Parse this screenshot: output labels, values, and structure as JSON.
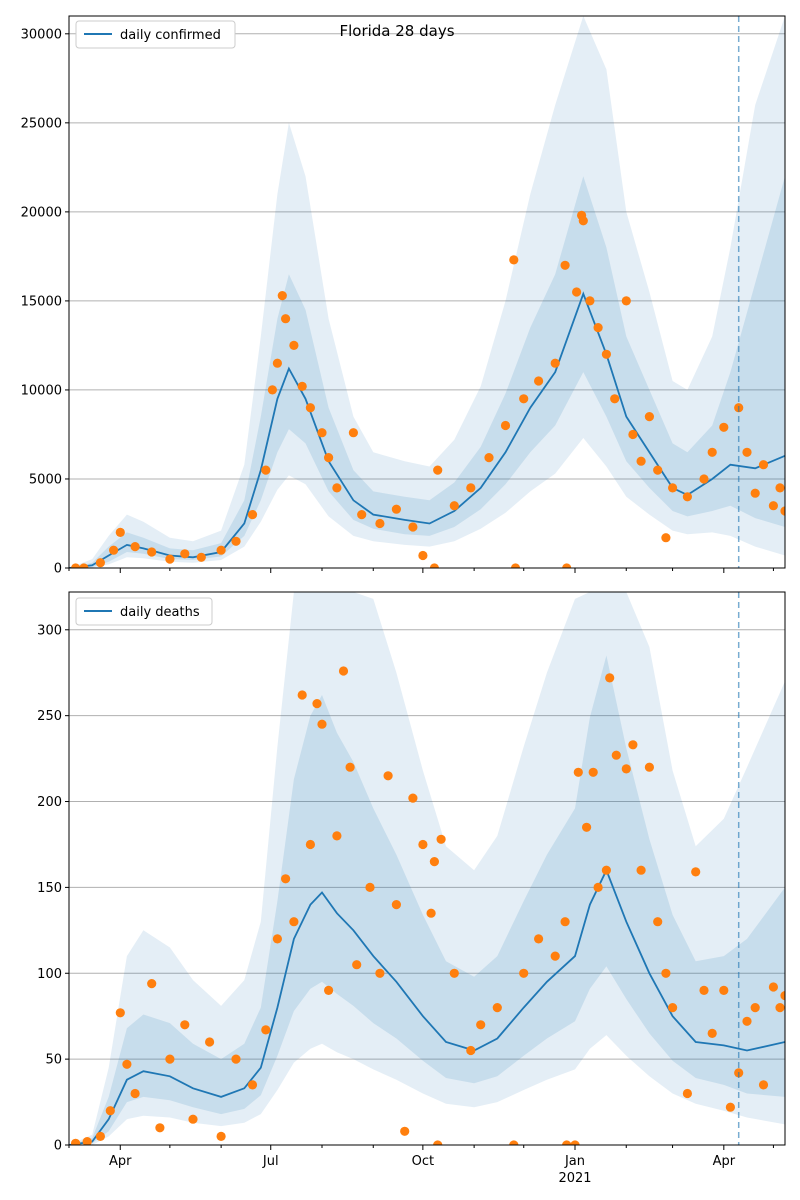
{
  "chart_data": [
    {
      "type": "line",
      "title": "Florida 28 days",
      "legend": {
        "label": "daily confirmed",
        "placement": "top-left"
      },
      "date_range": [
        "2020-03-01",
        "2021-05-08"
      ],
      "vline_date": "2021-04-10",
      "ylim": [
        0,
        31000
      ],
      "yticks": [
        0,
        5000,
        10000,
        15000,
        20000,
        25000,
        30000
      ],
      "grid_y": true,
      "colors": {
        "line": "#1f77b4",
        "points": "#ff7f0e",
        "vline": "#1f77b4"
      },
      "line_points": [
        [
          "2020-03-01",
          0
        ],
        [
          "2020-03-15",
          150
        ],
        [
          "2020-03-25",
          700
        ],
        [
          "2020-04-05",
          1300
        ],
        [
          "2020-04-15",
          1100
        ],
        [
          "2020-05-01",
          700
        ],
        [
          "2020-05-15",
          600
        ],
        [
          "2020-06-01",
          900
        ],
        [
          "2020-06-15",
          2500
        ],
        [
          "2020-06-25",
          5500
        ],
        [
          "2020-07-05",
          9500
        ],
        [
          "2020-07-12",
          11200
        ],
        [
          "2020-07-22",
          9500
        ],
        [
          "2020-08-05",
          6000
        ],
        [
          "2020-08-20",
          3800
        ],
        [
          "2020-09-01",
          3000
        ],
        [
          "2020-09-20",
          2700
        ],
        [
          "2020-10-05",
          2500
        ],
        [
          "2020-10-20",
          3200
        ],
        [
          "2020-11-05",
          4500
        ],
        [
          "2020-11-20",
          6500
        ],
        [
          "2020-12-05",
          9000
        ],
        [
          "2020-12-20",
          11000
        ],
        [
          "2021-01-06",
          15400
        ],
        [
          "2021-01-20",
          12000
        ],
        [
          "2021-02-01",
          8500
        ],
        [
          "2021-02-15",
          6500
        ],
        [
          "2021-03-01",
          4500
        ],
        [
          "2021-03-10",
          4100
        ],
        [
          "2021-03-25",
          5000
        ],
        [
          "2021-04-05",
          5800
        ],
        [
          "2021-04-20",
          5600
        ],
        [
          "2021-05-08",
          6300
        ]
      ],
      "band_inner": {
        "lower": [
          0,
          50,
          350,
          900,
          800,
          500,
          450,
          650,
          1800,
          3800,
          6500,
          7800,
          7000,
          4300,
          2700,
          2200,
          1900,
          1800,
          2300,
          3300,
          4700,
          6500,
          8000,
          11000,
          8500,
          6000,
          4500,
          3200,
          2900,
          3200,
          3500,
          2800,
          2300
        ],
        "upper": [
          0,
          300,
          1200,
          2000,
          1700,
          1100,
          1000,
          1400,
          3800,
          8500,
          14000,
          16500,
          14500,
          9000,
          5500,
          4300,
          4000,
          3800,
          4800,
          6800,
          9800,
          13500,
          16500,
          22000,
          18000,
          13000,
          10000,
          7000,
          6500,
          8000,
          11000,
          16000,
          22000
        ]
      },
      "band_outer": {
        "lower": [
          0,
          20,
          200,
          600,
          550,
          350,
          300,
          450,
          1200,
          2600,
          4400,
          5200,
          4700,
          2900,
          1800,
          1500,
          1300,
          1200,
          1500,
          2200,
          3100,
          4300,
          5300,
          7300,
          5700,
          4000,
          3000,
          2100,
          1900,
          2000,
          1800,
          1200,
          700
        ],
        "upper": [
          0,
          500,
          1800,
          3000,
          2600,
          1700,
          1500,
          2100,
          5800,
          13000,
          21000,
          25000,
          22000,
          14000,
          8500,
          6500,
          6000,
          5700,
          7200,
          10200,
          15000,
          21000,
          26000,
          33000,
          28000,
          20000,
          15500,
          10500,
          10000,
          13000,
          18000,
          26000,
          33000
        ]
      },
      "scatter_points": [
        [
          "2020-03-05",
          0
        ],
        [
          "2020-03-10",
          0
        ],
        [
          "2020-03-20",
          300
        ],
        [
          "2020-03-28",
          1000
        ],
        [
          "2020-04-01",
          2000
        ],
        [
          "2020-04-10",
          1200
        ],
        [
          "2020-04-20",
          900
        ],
        [
          "2020-05-01",
          500
        ],
        [
          "2020-05-10",
          800
        ],
        [
          "2020-05-20",
          600
        ],
        [
          "2020-06-01",
          1000
        ],
        [
          "2020-06-10",
          1500
        ],
        [
          "2020-06-20",
          3000
        ],
        [
          "2020-06-28",
          5500
        ],
        [
          "2020-07-02",
          10000
        ],
        [
          "2020-07-05",
          11500
        ],
        [
          "2020-07-08",
          15300
        ],
        [
          "2020-07-10",
          14000
        ],
        [
          "2020-07-15",
          12500
        ],
        [
          "2020-07-20",
          10200
        ],
        [
          "2020-07-25",
          9000
        ],
        [
          "2020-08-01",
          7600
        ],
        [
          "2020-08-05",
          6200
        ],
        [
          "2020-08-10",
          4500
        ],
        [
          "2020-08-20",
          7600
        ],
        [
          "2020-08-25",
          3000
        ],
        [
          "2020-09-05",
          2500
        ],
        [
          "2020-09-15",
          3300
        ],
        [
          "2020-09-25",
          2300
        ],
        [
          "2020-10-01",
          700
        ],
        [
          "2020-10-08",
          0
        ],
        [
          "2020-10-10",
          5500
        ],
        [
          "2020-10-20",
          3500
        ],
        [
          "2020-10-30",
          4500
        ],
        [
          "2020-11-10",
          6200
        ],
        [
          "2020-11-20",
          8000
        ],
        [
          "2020-11-25",
          17300
        ],
        [
          "2020-11-26",
          0
        ],
        [
          "2020-12-01",
          9500
        ],
        [
          "2020-12-10",
          10500
        ],
        [
          "2020-12-20",
          11500
        ],
        [
          "2020-12-26",
          17000
        ],
        [
          "2020-12-27",
          0
        ],
        [
          "2021-01-02",
          15500
        ],
        [
          "2021-01-05",
          19800
        ],
        [
          "2021-01-06",
          19500
        ],
        [
          "2021-01-10",
          15000
        ],
        [
          "2021-01-15",
          13500
        ],
        [
          "2021-01-20",
          12000
        ],
        [
          "2021-01-25",
          9500
        ],
        [
          "2021-02-01",
          15000
        ],
        [
          "2021-02-05",
          7500
        ],
        [
          "2021-02-10",
          6000
        ],
        [
          "2021-02-15",
          8500
        ],
        [
          "2021-02-20",
          5500
        ],
        [
          "2021-02-25",
          1700
        ],
        [
          "2021-03-01",
          4500
        ],
        [
          "2021-03-10",
          4000
        ],
        [
          "2021-03-20",
          5000
        ],
        [
          "2021-03-25",
          6500
        ],
        [
          "2021-04-01",
          7900
        ],
        [
          "2021-04-10",
          9000
        ],
        [
          "2021-04-15",
          6500
        ],
        [
          "2021-04-20",
          4200
        ],
        [
          "2021-04-25",
          5800
        ],
        [
          "2021-05-01",
          3500
        ],
        [
          "2021-05-05",
          4500
        ],
        [
          "2021-05-08",
          3200
        ]
      ]
    },
    {
      "type": "line",
      "title": "",
      "legend": {
        "label": "daily deaths",
        "placement": "top-left"
      },
      "date_range": [
        "2020-03-01",
        "2021-05-08"
      ],
      "vline_date": "2021-04-10",
      "ylim": [
        0,
        322
      ],
      "yticks": [
        0,
        50,
        100,
        150,
        200,
        250,
        300
      ],
      "grid_y": true,
      "xticks": [
        {
          "date": "2020-04-01",
          "label": "Apr"
        },
        {
          "date": "2020-07-01",
          "label": "Jul"
        },
        {
          "date": "2020-10-01",
          "label": "Oct"
        },
        {
          "date": "2021-01-01",
          "label": "Jan",
          "sublabel": "2021"
        },
        {
          "date": "2021-04-01",
          "label": "Apr"
        }
      ],
      "colors": {
        "line": "#1f77b4",
        "points": "#ff7f0e",
        "vline": "#1f77b4"
      },
      "line_points": [
        [
          "2020-03-01",
          0
        ],
        [
          "2020-03-15",
          2
        ],
        [
          "2020-03-25",
          15
        ],
        [
          "2020-04-05",
          38
        ],
        [
          "2020-04-15",
          43
        ],
        [
          "2020-05-01",
          40
        ],
        [
          "2020-05-15",
          33
        ],
        [
          "2020-06-01",
          28
        ],
        [
          "2020-06-15",
          33
        ],
        [
          "2020-06-25",
          45
        ],
        [
          "2020-07-05",
          80
        ],
        [
          "2020-07-15",
          120
        ],
        [
          "2020-07-25",
          140
        ],
        [
          "2020-08-01",
          147
        ],
        [
          "2020-08-10",
          135
        ],
        [
          "2020-08-20",
          125
        ],
        [
          "2020-09-01",
          110
        ],
        [
          "2020-09-15",
          95
        ],
        [
          "2020-10-01",
          75
        ],
        [
          "2020-10-15",
          60
        ],
        [
          "2020-11-01",
          55
        ],
        [
          "2020-11-15",
          62
        ],
        [
          "2020-12-01",
          80
        ],
        [
          "2020-12-15",
          95
        ],
        [
          "2021-01-01",
          110
        ],
        [
          "2021-01-10",
          140
        ],
        [
          "2021-01-20",
          160
        ],
        [
          "2021-02-01",
          130
        ],
        [
          "2021-02-15",
          100
        ],
        [
          "2021-03-01",
          75
        ],
        [
          "2021-03-15",
          60
        ],
        [
          "2021-04-01",
          58
        ],
        [
          "2021-04-15",
          55
        ],
        [
          "2021-05-08",
          60
        ]
      ],
      "band_inner": {
        "lower": [
          0,
          1,
          8,
          25,
          28,
          26,
          22,
          18,
          21,
          29,
          52,
          78,
          91,
          95,
          88,
          81,
          71,
          62,
          49,
          39,
          36,
          40,
          52,
          62,
          72,
          91,
          104,
          85,
          65,
          49,
          39,
          35,
          30,
          28
        ],
        "upper": [
          0,
          4,
          28,
          68,
          76,
          71,
          59,
          50,
          59,
          80,
          142,
          213,
          250,
          262,
          240,
          223,
          196,
          169,
          134,
          107,
          98,
          110,
          142,
          169,
          196,
          249,
          285,
          231,
          178,
          134,
          107,
          110,
          120,
          150
        ]
      },
      "band_outer": {
        "lower": [
          0,
          0,
          5,
          15,
          17,
          16,
          13,
          11,
          13,
          18,
          32,
          48,
          56,
          59,
          54,
          50,
          44,
          38,
          30,
          24,
          22,
          25,
          32,
          38,
          44,
          56,
          64,
          52,
          40,
          30,
          24,
          20,
          16,
          12
        ],
        "upper": [
          0,
          6,
          45,
          110,
          125,
          115,
          96,
          81,
          96,
          130,
          232,
          348,
          405,
          425,
          390,
          360,
          318,
          275,
          218,
          174,
          160,
          180,
          232,
          275,
          318,
          405,
          460,
          375,
          290,
          218,
          174,
          190,
          220,
          270
        ]
      },
      "scatter_points": [
        [
          "2020-03-05",
          1
        ],
        [
          "2020-03-12",
          2
        ],
        [
          "2020-03-20",
          5
        ],
        [
          "2020-03-26",
          20
        ],
        [
          "2020-04-01",
          77
        ],
        [
          "2020-04-05",
          47
        ],
        [
          "2020-04-10",
          30
        ],
        [
          "2020-04-20",
          94
        ],
        [
          "2020-04-25",
          10
        ],
        [
          "2020-05-01",
          50
        ],
        [
          "2020-05-10",
          70
        ],
        [
          "2020-05-15",
          15
        ],
        [
          "2020-05-25",
          60
        ],
        [
          "2020-06-01",
          5
        ],
        [
          "2020-06-10",
          50
        ],
        [
          "2020-06-20",
          35
        ],
        [
          "2020-06-28",
          67
        ],
        [
          "2020-07-05",
          120
        ],
        [
          "2020-07-10",
          155
        ],
        [
          "2020-07-15",
          130
        ],
        [
          "2020-07-20",
          262
        ],
        [
          "2020-07-25",
          175
        ],
        [
          "2020-07-29",
          257
        ],
        [
          "2020-08-01",
          245
        ],
        [
          "2020-08-05",
          90
        ],
        [
          "2020-08-10",
          180
        ],
        [
          "2020-08-14",
          276
        ],
        [
          "2020-08-18",
          220
        ],
        [
          "2020-08-22",
          105
        ],
        [
          "2020-08-30",
          150
        ],
        [
          "2020-09-05",
          100
        ],
        [
          "2020-09-10",
          215
        ],
        [
          "2020-09-15",
          140
        ],
        [
          "2020-09-20",
          8
        ],
        [
          "2020-09-25",
          202
        ],
        [
          "2020-10-01",
          175
        ],
        [
          "2020-10-06",
          135
        ],
        [
          "2020-10-08",
          165
        ],
        [
          "2020-10-10",
          0
        ],
        [
          "2020-10-12",
          178
        ],
        [
          "2020-10-20",
          100
        ],
        [
          "2020-10-30",
          55
        ],
        [
          "2020-11-05",
          70
        ],
        [
          "2020-11-15",
          80
        ],
        [
          "2020-11-25",
          0
        ],
        [
          "2020-12-01",
          100
        ],
        [
          "2020-12-10",
          120
        ],
        [
          "2020-12-20",
          110
        ],
        [
          "2020-12-26",
          130
        ],
        [
          "2020-12-27",
          0
        ],
        [
          "2021-01-01",
          0
        ],
        [
          "2021-01-03",
          217
        ],
        [
          "2021-01-08",
          185
        ],
        [
          "2021-01-12",
          217
        ],
        [
          "2021-01-15",
          150
        ],
        [
          "2021-01-20",
          160
        ],
        [
          "2021-01-22",
          272
        ],
        [
          "2021-01-26",
          227
        ],
        [
          "2021-02-01",
          219
        ],
        [
          "2021-02-05",
          233
        ],
        [
          "2021-02-10",
          160
        ],
        [
          "2021-02-15",
          220
        ],
        [
          "2021-02-20",
          130
        ],
        [
          "2021-02-25",
          100
        ],
        [
          "2021-03-01",
          80
        ],
        [
          "2021-03-10",
          30
        ],
        [
          "2021-03-15",
          159
        ],
        [
          "2021-03-20",
          90
        ],
        [
          "2021-03-25",
          65
        ],
        [
          "2021-04-01",
          90
        ],
        [
          "2021-04-05",
          22
        ],
        [
          "2021-04-10",
          42
        ],
        [
          "2021-04-15",
          72
        ],
        [
          "2021-04-20",
          80
        ],
        [
          "2021-04-25",
          35
        ],
        [
          "2021-05-01",
          92
        ],
        [
          "2021-05-05",
          80
        ],
        [
          "2021-05-08",
          87
        ]
      ]
    }
  ]
}
